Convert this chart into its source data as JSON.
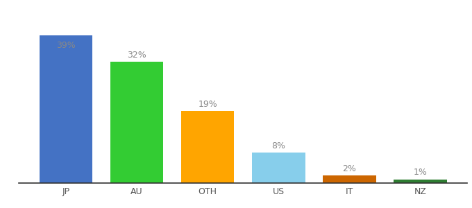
{
  "categories": [
    "JP",
    "AU",
    "OTH",
    "US",
    "IT",
    "NZ"
  ],
  "values": [
    39,
    32,
    19,
    8,
    2,
    1
  ],
  "labels": [
    "39%",
    "32%",
    "19%",
    "8%",
    "2%",
    "1%"
  ],
  "bar_colors": [
    "#4472C4",
    "#33CC33",
    "#FFA500",
    "#87CEEB",
    "#CC6600",
    "#2E7D32"
  ],
  "background_color": "#ffffff",
  "label_color": "#888888",
  "label_fontsize": 9,
  "tick_fontsize": 9,
  "bar_width": 0.75,
  "ylim": [
    0,
    44
  ],
  "label_inside_threshold": 39
}
